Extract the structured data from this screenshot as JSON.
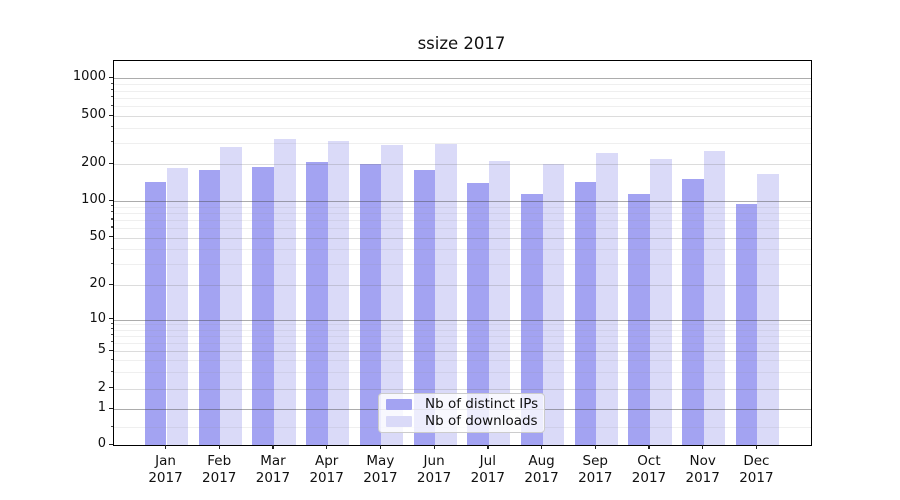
{
  "title": "ssize 2017",
  "chart_data": {
    "type": "bar",
    "title": "ssize 2017",
    "yscale": "symlog",
    "grid_on": true,
    "legend_position": "lower center",
    "ylim": [
      0,
      1400
    ],
    "categories": [
      "Jan 2017",
      "Feb 2017",
      "Mar 2017",
      "Apr 2017",
      "May 2017",
      "Jun 2017",
      "Jul 2017",
      "Aug 2017",
      "Sep 2017",
      "Oct 2017",
      "Nov 2017",
      "Dec 2017"
    ],
    "series": [
      {
        "name": "Nb of distinct IPs",
        "color": "#a3a3f2",
        "values": [
          143,
          178,
          190,
          207,
          200,
          180,
          140,
          115,
          143,
          115,
          151,
          95
        ]
      },
      {
        "name": "Nb of downloads",
        "color": "#dadaf8",
        "values": [
          185,
          275,
          320,
          310,
          285,
          295,
          212,
          200,
          245,
          220,
          258,
          165
        ]
      }
    ],
    "y_ticks": {
      "values": [
        0,
        1,
        2,
        5,
        10,
        20,
        50,
        100,
        200,
        500,
        1000
      ],
      "labels": [
        "0",
        "1",
        "2",
        "5",
        "10",
        "20",
        "50",
        "100",
        "200",
        "500",
        "1000"
      ]
    },
    "grid": {
      "major": [
        1,
        10,
        100,
        1000
      ],
      "mid": [
        2,
        5,
        20,
        50,
        200,
        500
      ],
      "minor": [
        0.5,
        3,
        4,
        6,
        7,
        8,
        9,
        30,
        40,
        60,
        70,
        80,
        90,
        300,
        400,
        600,
        700,
        800,
        900
      ]
    }
  },
  "legend": {
    "items": [
      {
        "label": "Nb of distinct IPs"
      },
      {
        "label": "Nb of downloads"
      }
    ]
  }
}
